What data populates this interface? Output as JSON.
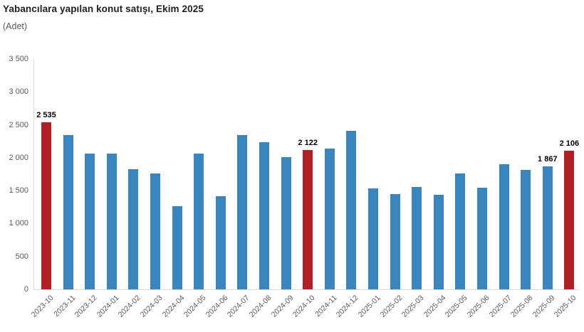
{
  "header": {
    "title": "Yabancılara yapılan konut satışı, Ekim 2025",
    "subtitle": "(Adet)"
  },
  "colors": {
    "bar_default": "#3a85be",
    "bar_highlight": "#b02025",
    "axis_line": "#d9d9d9",
    "tick_text": "#595959",
    "value_label_text": "#000000"
  },
  "chart_data": {
    "type": "bar",
    "title": "Yabancılara yapılan konut satışı, Ekim 2025",
    "xlabel": "",
    "ylabel": "(Adet)",
    "ylim": [
      0,
      3500
    ],
    "grid": false,
    "legend": false,
    "yticks": [
      {
        "value": 0,
        "label": "0"
      },
      {
        "value": 500,
        "label": "500"
      },
      {
        "value": 1000,
        "label": "1 000"
      },
      {
        "value": 1500,
        "label": "1 500"
      },
      {
        "value": 2000,
        "label": "2 000"
      },
      {
        "value": 2500,
        "label": "2 500"
      },
      {
        "value": 3000,
        "label": "3 000"
      },
      {
        "value": 3500,
        "label": "3 500"
      }
    ],
    "categories": [
      "2023-10",
      "2023-11",
      "2023-12",
      "2024-01",
      "2024-02",
      "2024-03",
      "2024-04",
      "2024-05",
      "2024-06",
      "2024-07",
      "2024-08",
      "2024-09",
      "2024-10",
      "2024-11",
      "2024-12",
      "2025-01",
      "2025-02",
      "2025-03",
      "2025-04",
      "2025-05",
      "2025-06",
      "2025-07",
      "2025-08",
      "2025-09",
      "2025-10"
    ],
    "values": [
      2535,
      2340,
      2060,
      2060,
      1830,
      1760,
      1260,
      2060,
      1420,
      2340,
      2240,
      2010,
      2122,
      2140,
      2410,
      1530,
      1450,
      1560,
      1440,
      1760,
      1550,
      1900,
      1810,
      1867,
      2106
    ],
    "highlight_indices": [
      0,
      12,
      24
    ],
    "data_labels": [
      {
        "index": 0,
        "text": "2 535"
      },
      {
        "index": 12,
        "text": "2 122"
      },
      {
        "index": 23,
        "text": "1 867"
      },
      {
        "index": 24,
        "text": "2 106"
      }
    ]
  }
}
